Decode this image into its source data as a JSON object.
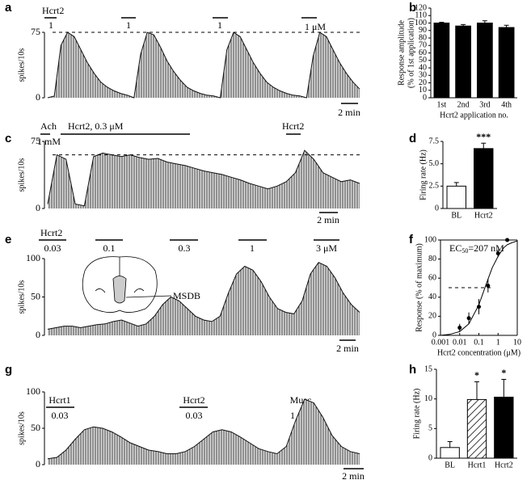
{
  "chart_data": [
    {
      "type": "line",
      "label": "a",
      "ylabel": "spikes/10s",
      "values": [
        0,
        2,
        60,
        75,
        70,
        55,
        40,
        28,
        18,
        12,
        8,
        5,
        3,
        0,
        50,
        75,
        72,
        58,
        42,
        30,
        20,
        12,
        8,
        5,
        3,
        2,
        0,
        55,
        75,
        70,
        55,
        40,
        28,
        18,
        12,
        8,
        5,
        3,
        2,
        0,
        48,
        75,
        70,
        55,
        40,
        28,
        18,
        10
      ],
      "ylim": [
        0,
        75
      ],
      "yticks": [
        0,
        75
      ],
      "reference_line": 75,
      "annotations": [
        "Hcrt2",
        "1",
        "1",
        "1",
        "1 μM"
      ],
      "scale_bar": "2 min"
    },
    {
      "type": "bar",
      "label": "b",
      "ylabel": [
        "Response amplitude",
        "(% of 1st application)"
      ],
      "xlabel": "Hcrt2 application no.",
      "categories": [
        "1st",
        "2nd",
        "3rd",
        "4th"
      ],
      "values": [
        100,
        96,
        100,
        94
      ],
      "errors": [
        1,
        2,
        3,
        3
      ],
      "colors": [
        "#000000",
        "#000000",
        "#000000",
        "#000000"
      ],
      "ylim": [
        0,
        120
      ],
      "yticks": [
        0,
        10,
        20,
        30,
        40,
        50,
        60,
        70,
        80,
        90,
        100,
        110,
        120
      ]
    },
    {
      "type": "line",
      "label": "c",
      "ylabel": "spikes/10s",
      "values": [
        5,
        60,
        55,
        5,
        3,
        58,
        62,
        60,
        58,
        60,
        57,
        55,
        56,
        52,
        50,
        48,
        45,
        42,
        40,
        38,
        35,
        32,
        28,
        25,
        22,
        25,
        30,
        40,
        65,
        55,
        40,
        35,
        30,
        32,
        28
      ],
      "ylim": [
        0,
        75
      ],
      "yticks": [
        0,
        75
      ],
      "reference_line": 60,
      "annotations": [
        "Ach",
        "1 mM",
        "Hcrt2,  0.3 μM",
        "Hcrt2"
      ],
      "scale_bar": "2 min"
    },
    {
      "type": "bar",
      "label": "d",
      "ylabel": [
        "Firing rate (Hz)"
      ],
      "categories": [
        "BL",
        "Hcrt2"
      ],
      "values": [
        2.5,
        6.7
      ],
      "errors": [
        0.4,
        0.6
      ],
      "colors": [
        "#ffffff",
        "#000000"
      ],
      "significance": [
        null,
        "***"
      ],
      "ylim": [
        0,
        7.5
      ],
      "yticks": [
        0,
        2.5,
        {
          "value": 5,
          "label": "5.0"
        },
        7.5
      ]
    },
    {
      "type": "line",
      "label": "e",
      "ylabel": "spikes/10s",
      "values": [
        8,
        10,
        12,
        12,
        10,
        12,
        14,
        15,
        18,
        20,
        16,
        12,
        15,
        25,
        40,
        50,
        45,
        35,
        25,
        20,
        18,
        25,
        55,
        80,
        90,
        85,
        70,
        50,
        35,
        30,
        28,
        45,
        80,
        95,
        90,
        75,
        55,
        40,
        30
      ],
      "ylim": [
        0,
        100
      ],
      "yticks": [
        0,
        50,
        100
      ],
      "annotations": [
        "Hcrt2",
        "0.03",
        "0.1",
        "0.3",
        "1",
        "3 μM",
        "MSDB"
      ],
      "scale_bar": "2 min"
    },
    {
      "type": "scatter",
      "label": "f",
      "ylabel": [
        "Response (% of maximum)"
      ],
      "xlabel": "Hcrt2 concentration (μM)",
      "x": [
        0.01,
        0.03,
        0.1,
        0.3,
        1,
        3
      ],
      "values": [
        8,
        18,
        30,
        52,
        86,
        100
      ],
      "errors": [
        4,
        6,
        8,
        7,
        4,
        2
      ],
      "curve": {
        "x": [
          0.001,
          0.003,
          0.01,
          0.03,
          0.1,
          0.2,
          0.3,
          0.5,
          1,
          2,
          3,
          5,
          10
        ],
        "values": [
          0,
          1,
          4,
          12,
          32,
          49,
          59,
          71,
          83,
          92,
          95,
          97,
          99
        ]
      },
      "xlog": true,
      "xlim": [
        0.001,
        10
      ],
      "xticks": [
        0.001,
        0.01,
        0.1,
        1,
        10
      ],
      "ylim": [
        0,
        100
      ],
      "yticks": [
        0,
        20,
        40,
        60,
        80,
        100
      ],
      "reference_line": 50,
      "annotation": [
        "EC",
        "50",
        "=207 nM"
      ]
    },
    {
      "type": "line",
      "label": "g",
      "ylabel": "spikes/10s",
      "values": [
        8,
        10,
        20,
        35,
        48,
        52,
        50,
        45,
        38,
        30,
        25,
        20,
        18,
        15,
        15,
        18,
        25,
        35,
        45,
        48,
        45,
        38,
        30,
        22,
        18,
        15,
        25,
        60,
        90,
        85,
        65,
        40,
        25,
        18,
        15
      ],
      "ylim": [
        0,
        100
      ],
      "yticks": [
        0,
        50,
        100
      ],
      "annotations": [
        "Hcrt1",
        "0.03",
        "Hcrt2",
        "0.03",
        "Musc",
        "1 μM"
      ],
      "scale_bar": "2 min"
    },
    {
      "type": "bar",
      "label": "h",
      "ylabel": [
        "Firing rate (Hz)"
      ],
      "categories": [
        "BL",
        "Hcrt1",
        "Hcrt2"
      ],
      "values": [
        1.8,
        9.9,
        10.3
      ],
      "errors": [
        1,
        3,
        3
      ],
      "colors": [
        "#ffffff",
        "hatch",
        "#000000"
      ],
      "significance": [
        null,
        "*",
        "*"
      ],
      "ylim": [
        0,
        15
      ],
      "yticks": [
        0,
        5,
        10,
        15
      ]
    }
  ]
}
